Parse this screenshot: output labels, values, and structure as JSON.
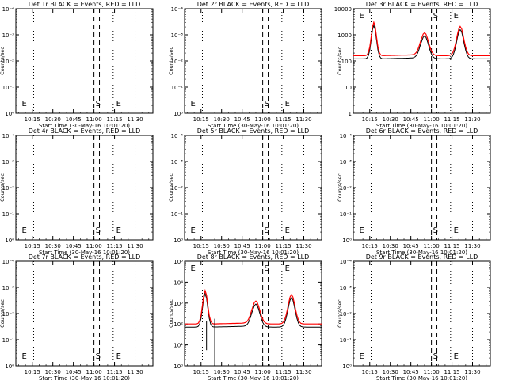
{
  "figure": {
    "start_time_label": "Start Time (30-May-16 10:01:20)",
    "ylabel": "Counts/sec",
    "x_tick_labels": [
      "10:15",
      "10:30",
      "10:45",
      "11:00",
      "11:15",
      "11:30"
    ],
    "colors": {
      "events": "#000000",
      "lld": "#ff0000",
      "axes": "#000000"
    }
  },
  "chart_data": [
    {
      "id": "1r",
      "title": "Det 1r BLACK = Events, RED = LLD",
      "type": "line",
      "ylog": true,
      "yticks": [
        "10⁰",
        "10⁻¹",
        "10⁻²",
        "10⁻³",
        "10⁻⁴"
      ],
      "markers": [
        {
          "t": 5,
          "label": "E"
        },
        {
          "t": 60,
          "label": "S"
        },
        {
          "t": 75,
          "label": "E"
        }
      ],
      "data": false
    },
    {
      "id": "2r",
      "title": "Det 2r BLACK = Events, RED = LLD",
      "type": "line",
      "ylog": true,
      "yticks": [
        "10⁰",
        "10⁻¹",
        "10⁻²",
        "10⁻³",
        "10⁻⁴"
      ],
      "markers": [
        {
          "t": 5,
          "label": "E"
        },
        {
          "t": 60,
          "label": "S"
        },
        {
          "t": 75,
          "label": "E"
        }
      ],
      "data": false
    },
    {
      "id": "3r",
      "title": "Det 3r BLACK = Events, RED = LLD",
      "type": "line",
      "ylog": true,
      "yticks": [
        "1",
        "10",
        "100",
        "1000",
        "10000"
      ],
      "markers": [
        {
          "t": 5,
          "label": "E"
        },
        {
          "t": 60,
          "label": "S"
        },
        {
          "t": 75,
          "label": "E"
        }
      ],
      "data": "flare"
    },
    {
      "id": "4r",
      "title": "Det 4r BLACK = Events, RED = LLD",
      "type": "line",
      "ylog": true,
      "yticks": [
        "10⁰",
        "10⁻¹",
        "10⁻²",
        "10⁻³",
        "10⁻⁴"
      ],
      "markers": [
        {
          "t": 5,
          "label": "E"
        },
        {
          "t": 60,
          "label": "S"
        },
        {
          "t": 75,
          "label": "E"
        }
      ],
      "data": false
    },
    {
      "id": "5r",
      "title": "Det 5r BLACK = Events, RED = LLD",
      "type": "line",
      "ylog": true,
      "yticks": [
        "10⁰",
        "10⁻¹",
        "10⁻²",
        "10⁻³",
        "10⁻⁴"
      ],
      "markers": [
        {
          "t": 5,
          "label": "E"
        },
        {
          "t": 60,
          "label": "S"
        },
        {
          "t": 75,
          "label": "E"
        }
      ],
      "data": false
    },
    {
      "id": "6r",
      "title": "Det 6r BLACK = Events, RED = LLD",
      "type": "line",
      "ylog": true,
      "yticks": [
        "10⁰",
        "10⁻¹",
        "10⁻²",
        "10⁻³",
        "10⁻⁴"
      ],
      "markers": [
        {
          "t": 5,
          "label": "E"
        },
        {
          "t": 60,
          "label": "S"
        },
        {
          "t": 75,
          "label": "E"
        }
      ],
      "data": false
    },
    {
      "id": "7r",
      "title": "Det 7r BLACK = Events, RED = LLD",
      "type": "line",
      "ylog": true,
      "yticks": [
        "10⁰",
        "10⁻¹",
        "10⁻²",
        "10⁻³",
        "10⁻⁴"
      ],
      "markers": [
        {
          "t": 5,
          "label": "E"
        },
        {
          "t": 60,
          "label": "S"
        },
        {
          "t": 75,
          "label": "E"
        }
      ],
      "data": false
    },
    {
      "id": "8r",
      "title": "Det 8r BLACK = Events, RED = LLD",
      "type": "line",
      "ylog": true,
      "yticks": [
        "10⁰",
        "10¹",
        "10²",
        "10³",
        "10⁴",
        "10⁵"
      ],
      "markers": [
        {
          "t": 5,
          "label": "E"
        },
        {
          "t": 60,
          "label": "S"
        },
        {
          "t": 75,
          "label": "E"
        }
      ],
      "data": "flare"
    },
    {
      "id": "9r",
      "title": "Det 9r BLACK = Events, RED = LLD",
      "type": "line",
      "ylog": true,
      "yticks": [
        "10⁰",
        "10⁻¹",
        "10⁻²",
        "10⁻³",
        "10⁻⁴"
      ],
      "markers": [
        {
          "t": 5,
          "label": "E"
        },
        {
          "t": 60,
          "label": "S"
        },
        {
          "t": 75,
          "label": "E"
        }
      ],
      "data": false
    }
  ]
}
